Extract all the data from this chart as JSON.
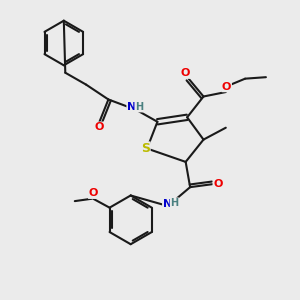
{
  "background_color": "#ebebeb",
  "bond_color": "#1a1a1a",
  "bond_width": 1.5,
  "atom_colors": {
    "N": "#0000cc",
    "O": "#ee0000",
    "S": "#bbbb00",
    "H": "#4a8080",
    "C": "#1a1a1a"
  },
  "figsize": [
    3.0,
    3.0
  ],
  "dpi": 100
}
